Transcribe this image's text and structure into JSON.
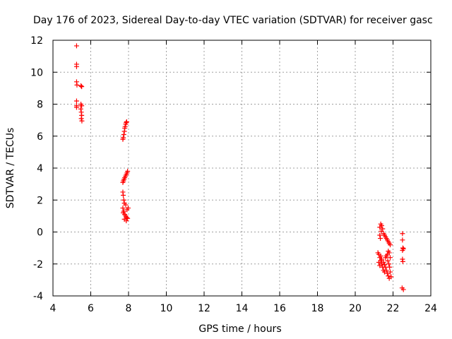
{
  "chart_data": {
    "type": "scatter",
    "title": "Day 176 of 2023, Sidereal Day-to-day VTEC variation (SDTVAR) for receiver gasc",
    "xlabel": "GPS time / hours",
    "ylabel": "SDTVAR / TECUs",
    "xlim": [
      4,
      24
    ],
    "ylim": [
      -4,
      12
    ],
    "xticks": [
      "4",
      "6",
      "8",
      "10",
      "12",
      "14",
      "16",
      "18",
      "20",
      "22",
      "24"
    ],
    "yticks": [
      "-4",
      "-2",
      "0",
      "2",
      "4",
      "6",
      "8",
      "10",
      "12"
    ],
    "grid": true,
    "marker": "+",
    "series": [
      {
        "name": "SDTVAR",
        "color": "#ff0000",
        "points": [
          [
            5.25,
            11.65
          ],
          [
            5.25,
            10.5
          ],
          [
            5.25,
            10.35
          ],
          [
            5.25,
            9.4
          ],
          [
            5.27,
            9.2
          ],
          [
            5.25,
            8.2
          ],
          [
            5.25,
            7.9
          ],
          [
            5.25,
            7.8
          ],
          [
            5.48,
            9.15
          ],
          [
            5.52,
            9.1
          ],
          [
            5.48,
            8.0
          ],
          [
            5.52,
            7.9
          ],
          [
            5.47,
            7.7
          ],
          [
            5.5,
            7.5
          ],
          [
            5.52,
            7.3
          ],
          [
            5.5,
            7.1
          ],
          [
            5.53,
            6.95
          ],
          [
            7.7,
            5.8
          ],
          [
            7.72,
            5.9
          ],
          [
            7.75,
            6.1
          ],
          [
            7.78,
            6.3
          ],
          [
            7.8,
            6.5
          ],
          [
            7.82,
            6.6
          ],
          [
            7.85,
            6.75
          ],
          [
            7.88,
            6.85
          ],
          [
            7.9,
            6.9
          ],
          [
            7.7,
            3.1
          ],
          [
            7.73,
            3.2
          ],
          [
            7.76,
            3.3
          ],
          [
            7.8,
            3.4
          ],
          [
            7.84,
            3.5
          ],
          [
            7.88,
            3.6
          ],
          [
            7.92,
            3.7
          ],
          [
            7.95,
            3.8
          ],
          [
            7.7,
            2.5
          ],
          [
            7.72,
            2.3
          ],
          [
            7.75,
            2.0
          ],
          [
            7.78,
            1.8
          ],
          [
            7.7,
            1.5
          ],
          [
            7.75,
            1.3
          ],
          [
            7.8,
            1.1
          ],
          [
            7.85,
            1.0
          ],
          [
            7.9,
            0.9
          ],
          [
            7.78,
            0.8
          ],
          [
            7.88,
            0.7
          ],
          [
            7.95,
            0.85
          ],
          [
            7.92,
            1.4
          ],
          [
            7.98,
            1.5
          ],
          [
            7.85,
            1.7
          ],
          [
            7.72,
            1.2
          ],
          [
            21.3,
            0.3
          ],
          [
            21.35,
            0.5
          ],
          [
            21.4,
            0.4
          ],
          [
            21.45,
            0.2
          ],
          [
            21.38,
            0.05
          ],
          [
            21.5,
            -0.1
          ],
          [
            21.55,
            -0.2
          ],
          [
            21.6,
            -0.3
          ],
          [
            21.65,
            -0.4
          ],
          [
            21.7,
            -0.5
          ],
          [
            21.75,
            -0.6
          ],
          [
            21.8,
            -0.7
          ],
          [
            21.85,
            -0.8
          ],
          [
            21.3,
            -0.2
          ],
          [
            21.33,
            -0.4
          ],
          [
            21.2,
            -1.3
          ],
          [
            21.25,
            -1.4
          ],
          [
            21.3,
            -1.6
          ],
          [
            21.35,
            -1.8
          ],
          [
            21.4,
            -2.0
          ],
          [
            21.45,
            -2.2
          ],
          [
            21.5,
            -2.4
          ],
          [
            21.55,
            -2.5
          ],
          [
            21.25,
            -1.9
          ],
          [
            21.3,
            -2.1
          ],
          [
            21.35,
            -1.5
          ],
          [
            21.4,
            -1.7
          ],
          [
            21.5,
            -1.9
          ],
          [
            21.55,
            -2.05
          ],
          [
            21.6,
            -1.6
          ],
          [
            21.65,
            -1.5
          ],
          [
            21.7,
            -1.4
          ],
          [
            21.6,
            -2.2
          ],
          [
            21.65,
            -2.4
          ],
          [
            21.7,
            -2.6
          ],
          [
            21.75,
            -2.75
          ],
          [
            21.8,
            -2.9
          ],
          [
            21.72,
            -1.8
          ],
          [
            21.78,
            -2.0
          ],
          [
            21.82,
            -2.2
          ],
          [
            21.85,
            -1.6
          ],
          [
            21.8,
            -1.3
          ],
          [
            21.75,
            -1.2
          ],
          [
            21.85,
            -2.5
          ],
          [
            21.9,
            -2.8
          ],
          [
            22.5,
            -0.1
          ],
          [
            22.5,
            -0.5
          ],
          [
            22.52,
            -1.0
          ],
          [
            22.5,
            -1.15
          ],
          [
            22.55,
            -1.05
          ],
          [
            22.5,
            -1.7
          ],
          [
            22.52,
            -1.85
          ],
          [
            22.48,
            -3.5
          ],
          [
            22.55,
            -3.6
          ]
        ]
      }
    ]
  }
}
